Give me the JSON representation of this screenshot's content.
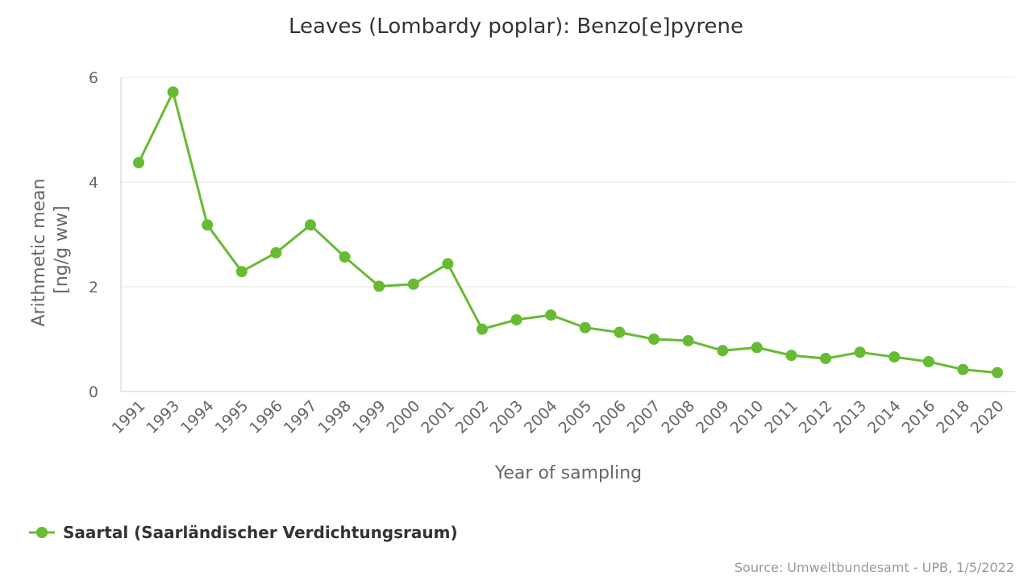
{
  "chart_data": {
    "type": "line",
    "title": "Leaves (Lombardy poplar): Benzo[e]pyrene",
    "xlabel": "Year of sampling",
    "ylabel_lines": [
      "Arithmetic mean",
      "[ng/g ww]"
    ],
    "ylim": [
      0,
      6
    ],
    "yticks": [
      0,
      2,
      4,
      6
    ],
    "grid": true,
    "legend_position": "bottom-left",
    "categories": [
      "1991",
      "1993",
      "1994",
      "1995",
      "1996",
      "1997",
      "1998",
      "1999",
      "2000",
      "2001",
      "2002",
      "2003",
      "2004",
      "2005",
      "2006",
      "2007",
      "2008",
      "2009",
      "2010",
      "2011",
      "2012",
      "2013",
      "2014",
      "2016",
      "2018",
      "2020"
    ],
    "series": [
      {
        "name": "Saartal (Saarländischer Verdichtungsraum)",
        "color": "#66bb33",
        "values": [
          4.37,
          5.72,
          3.18,
          2.29,
          2.65,
          3.18,
          2.57,
          2.01,
          2.05,
          2.44,
          1.19,
          1.37,
          1.46,
          1.22,
          1.13,
          1.0,
          0.97,
          0.78,
          0.84,
          0.69,
          0.63,
          0.75,
          0.66,
          0.57,
          0.42,
          0.36
        ]
      }
    ]
  },
  "credit": "Source: Umweltbundesamt - UPB, 1/5/2022"
}
